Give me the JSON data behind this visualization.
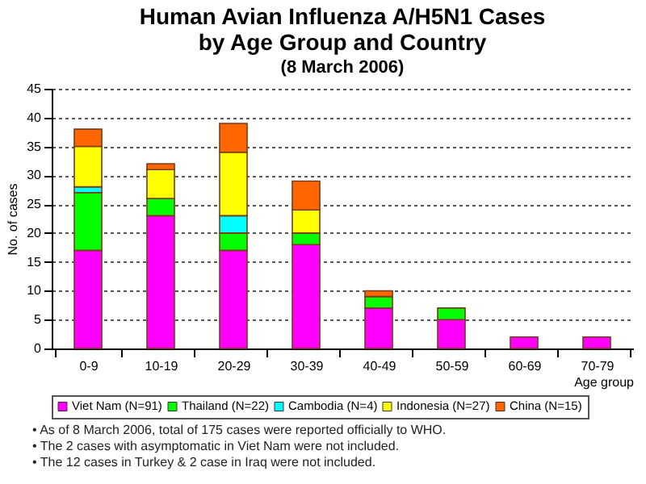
{
  "chart_data": {
    "type": "bar",
    "title": [
      "Human Avian Influenza A/H5N1 Cases",
      "by Age Group and Country"
    ],
    "subtitle": "(8 March 2006)",
    "categories": [
      "0-9",
      "10-19",
      "20-29",
      "30-39",
      "40-49",
      "50-59",
      "60-69",
      "70-79"
    ],
    "series": [
      {
        "name": "Viet Nam (N=91)",
        "color": "#ff00ff",
        "values": [
          17,
          23,
          17,
          18,
          7,
          5,
          2,
          2
        ]
      },
      {
        "name": "Thailand (N=22)",
        "color": "#00ff00",
        "values": [
          10,
          3,
          3,
          2,
          2,
          2,
          null,
          null
        ]
      },
      {
        "name": "Cambodia (N=4)",
        "color": "#00ffff",
        "values": [
          1,
          null,
          3,
          null,
          null,
          null,
          null,
          null
        ]
      },
      {
        "name": "Indonesia (N=27)",
        "color": "#ffff00",
        "values": [
          7,
          5,
          11,
          4,
          null,
          null,
          null,
          null
        ]
      },
      {
        "name": "China (N=15)",
        "color": "#ff6600",
        "values": [
          3,
          1,
          5,
          5,
          1,
          null,
          null,
          null
        ]
      }
    ],
    "stacked": true,
    "xlabel": "Age group",
    "ylabel": "No. of cases",
    "ylim": [
      0,
      45
    ],
    "yticks": [
      0,
      5,
      10,
      15,
      20,
      25,
      30,
      35,
      40,
      45
    ],
    "grid": "y",
    "legend": "bottom",
    "annotations": [
      "• As of 8 March 2006, total of 175 cases were reported officially to WHO.",
      "• The 2 cases with asymptomatic in Viet Nam were not included.",
      "• The 12 cases in Turkey & 2 case in Iraq were not included."
    ]
  }
}
